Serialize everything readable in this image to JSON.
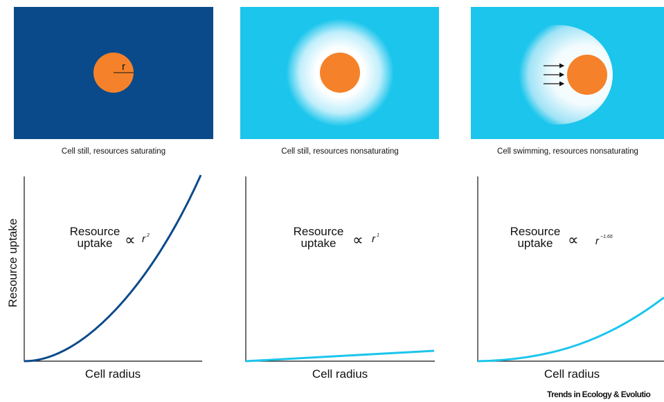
{
  "panels": [
    {
      "caption": "Cell still, resources saturating",
      "radius_label": "r",
      "x_label": "Cell radius",
      "y_label": "Resource uptake",
      "equation": {
        "line1": "Resource",
        "line2": "uptake",
        "symbol": "∝",
        "base": "r",
        "exponent": "2"
      }
    },
    {
      "caption": "Cell still, resources nonsaturating",
      "x_label": "Cell radius",
      "equation": {
        "line1": "Resource",
        "line2": "uptake",
        "symbol": "∝",
        "base": "r",
        "exponent": "1"
      }
    },
    {
      "caption": "Cell swimming, resources nonsaturating",
      "x_label": "Cell radius",
      "equation": {
        "line1": "Resource",
        "line2": "uptake",
        "symbol": "∝",
        "base": "r",
        "exponent": "~1.66"
      }
    }
  ],
  "footer": "Trends in Ecology & Evolutio"
}
